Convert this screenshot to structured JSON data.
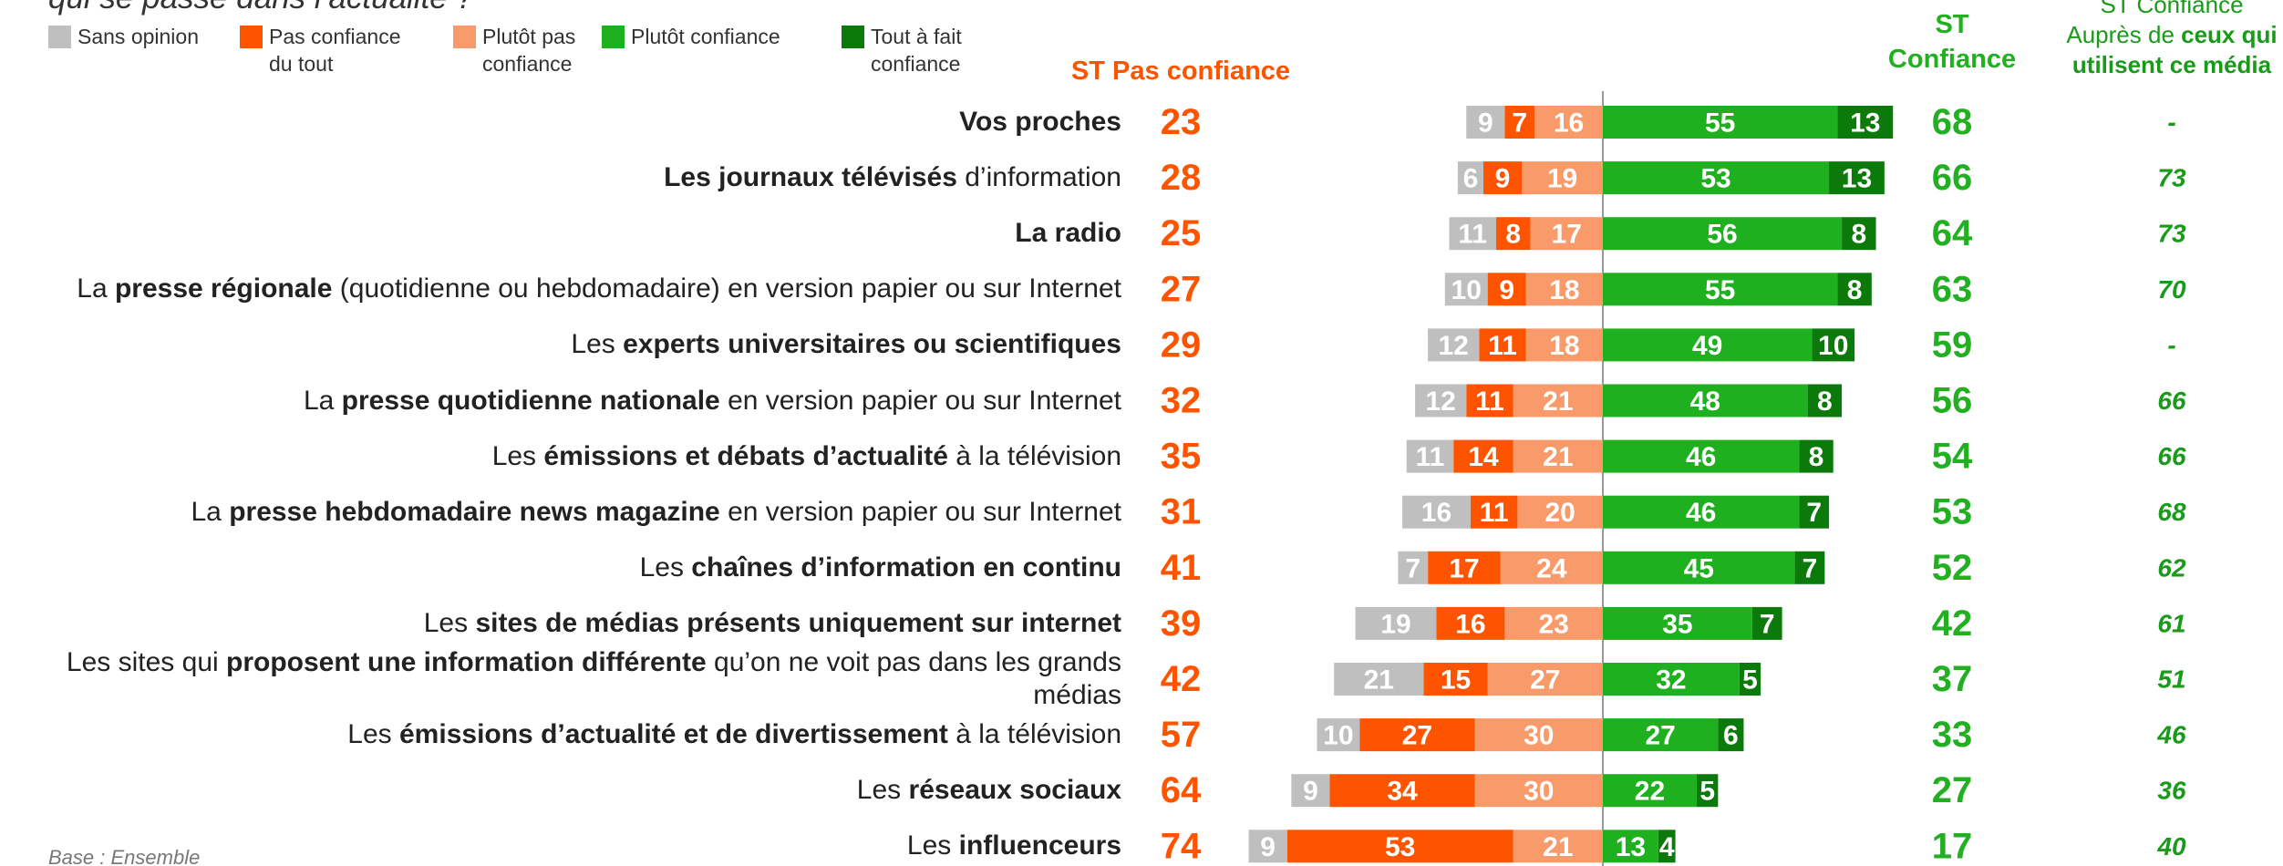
{
  "chart_data": {
    "type": "diverging_bar",
    "title": "qui se passe dans l’actualité ?",
    "footnote": "Base : Ensemble",
    "series": [
      {
        "name": "Sans opinion",
        "color": "#bfbfbf",
        "values": [
          9,
          6,
          11,
          10,
          12,
          12,
          11,
          16,
          7,
          19,
          21,
          10,
          9,
          9
        ]
      },
      {
        "name": "Pas confiance du tout",
        "color": "#fe5400",
        "values": [
          7,
          9,
          8,
          9,
          11,
          11,
          14,
          11,
          17,
          16,
          15,
          27,
          34,
          53
        ]
      },
      {
        "name": "Plutôt pas confiance",
        "color": "#f89a6a",
        "values": [
          16,
          19,
          17,
          18,
          18,
          21,
          21,
          20,
          24,
          23,
          27,
          30,
          30,
          21
        ]
      },
      {
        "name": "Plutôt confiance",
        "color": "#1fb01f",
        "values": [
          55,
          53,
          56,
          55,
          49,
          48,
          46,
          46,
          45,
          35,
          32,
          27,
          22,
          13
        ]
      },
      {
        "name": "Tout à fait confiance",
        "color": "#0b7a0b",
        "values": [
          13,
          13,
          8,
          8,
          10,
          8,
          8,
          7,
          7,
          7,
          5,
          6,
          5,
          4
        ]
      }
    ],
    "categories": [
      [
        {
          "text": "Vos proches",
          "bold": true
        }
      ],
      [
        {
          "text": "Les journaux télévisés",
          "bold": true
        },
        {
          "text": " d’information",
          "bold": false
        }
      ],
      [
        {
          "text": "La radio",
          "bold": true
        }
      ],
      [
        {
          "text": "La ",
          "bold": false
        },
        {
          "text": "presse régionale",
          "bold": true
        },
        {
          "text": " (quotidienne ou hebdomadaire) en version papier ou sur Internet",
          "bold": false
        }
      ],
      [
        {
          "text": "Les ",
          "bold": false
        },
        {
          "text": "experts universitaires ou scientifiques",
          "bold": true
        }
      ],
      [
        {
          "text": "La ",
          "bold": false
        },
        {
          "text": "presse quotidienne nationale",
          "bold": true
        },
        {
          "text": " en version papier ou sur Internet",
          "bold": false
        }
      ],
      [
        {
          "text": "Les ",
          "bold": false
        },
        {
          "text": "émissions et débats d’actualité",
          "bold": true
        },
        {
          "text": " à la télévision",
          "bold": false
        }
      ],
      [
        {
          "text": "La ",
          "bold": false
        },
        {
          "text": "presse hebdomadaire news magazine",
          "bold": true
        },
        {
          "text": " en version papier ou sur Internet",
          "bold": false
        }
      ],
      [
        {
          "text": "Les ",
          "bold": false
        },
        {
          "text": "chaînes d’information en continu",
          "bold": true
        }
      ],
      [
        {
          "text": "Les ",
          "bold": false
        },
        {
          "text": "sites de médias présents uniquement sur internet",
          "bold": true
        }
      ],
      [
        {
          "text": "Les sites qui ",
          "bold": false
        },
        {
          "text": "proposent une information différente",
          "bold": true
        },
        {
          "text": " qu’on ne voit pas dans les grands médias",
          "bold": false
        }
      ],
      [
        {
          "text": "Les ",
          "bold": false
        },
        {
          "text": "émissions d’actualité et de divertissement",
          "bold": true
        },
        {
          "text": " à la télévision",
          "bold": false
        }
      ],
      [
        {
          "text": "Les ",
          "bold": false
        },
        {
          "text": "réseaux sociaux",
          "bold": true
        }
      ],
      [
        {
          "text": "Les ",
          "bold": false
        },
        {
          "text": "influenceurs",
          "bold": true
        }
      ]
    ],
    "columns": [
      {
        "header": [
          [
            {
              "text": "ST Pas confiance",
              "bold": true
            }
          ]
        ],
        "color": "#fe5400",
        "values": [
          23,
          28,
          25,
          27,
          29,
          32,
          35,
          31,
          41,
          39,
          42,
          57,
          64,
          74
        ]
      },
      {
        "header": [
          [
            {
              "text": "ST",
              "bold": true
            }
          ],
          [
            {
              "text": "Confiance",
              "bold": true
            }
          ]
        ],
        "color": "#22b022",
        "values": [
          68,
          66,
          64,
          63,
          59,
          56,
          54,
          53,
          52,
          42,
          37,
          33,
          27,
          17
        ]
      },
      {
        "header": [
          [
            {
              "text": "ST Confiance",
              "bold": false
            }
          ],
          [
            {
              "text": "Auprès de ",
              "bold": false
            },
            {
              "text": "ceux qui",
              "bold": true
            }
          ],
          [
            {
              "text": "utilisent ce média",
              "bold": true
            }
          ]
        ],
        "color": "#1a9a1a",
        "values": [
          null,
          73,
          73,
          70,
          null,
          66,
          66,
          68,
          62,
          61,
          51,
          46,
          36,
          40
        ],
        "value_labels": [
          "-",
          "73",
          "73",
          "70",
          "-",
          "66",
          "66",
          "68",
          "62",
          "61",
          "51",
          "46",
          "36",
          "40"
        ]
      }
    ]
  }
}
